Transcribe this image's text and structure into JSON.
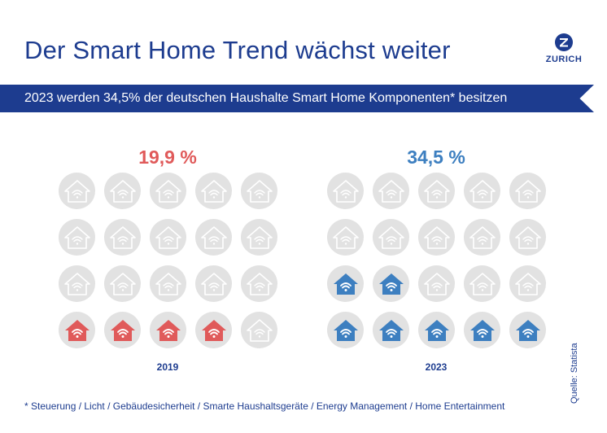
{
  "title": "Der Smart Home Trend wächst weiter",
  "logo": {
    "text": "ZURICH"
  },
  "banner": {
    "text": "2023 werden 34,5% der deutschen Haushalte Smart Home Komponenten* besitzen"
  },
  "colors": {
    "brand": "#1d3c8f",
    "red": "#e05a5a",
    "blue": "#3d7fc0",
    "inactive": "#e2e2e2"
  },
  "panels": [
    {
      "percent_label": "19,9 %",
      "year": "2019",
      "filled_count": 4,
      "total": 20,
      "fill_color": "#e05a5a"
    },
    {
      "percent_label": "34,5 %",
      "year": "2023",
      "filled_count": 7,
      "total": 20,
      "fill_color": "#3d7fc0"
    }
  ],
  "source": "Quelle: Statista",
  "footnote": "* Steuerung / Licht / Gebäudesicherheit / Smarte Haushaltsgeräte / Energy Management / Home Entertainment"
}
